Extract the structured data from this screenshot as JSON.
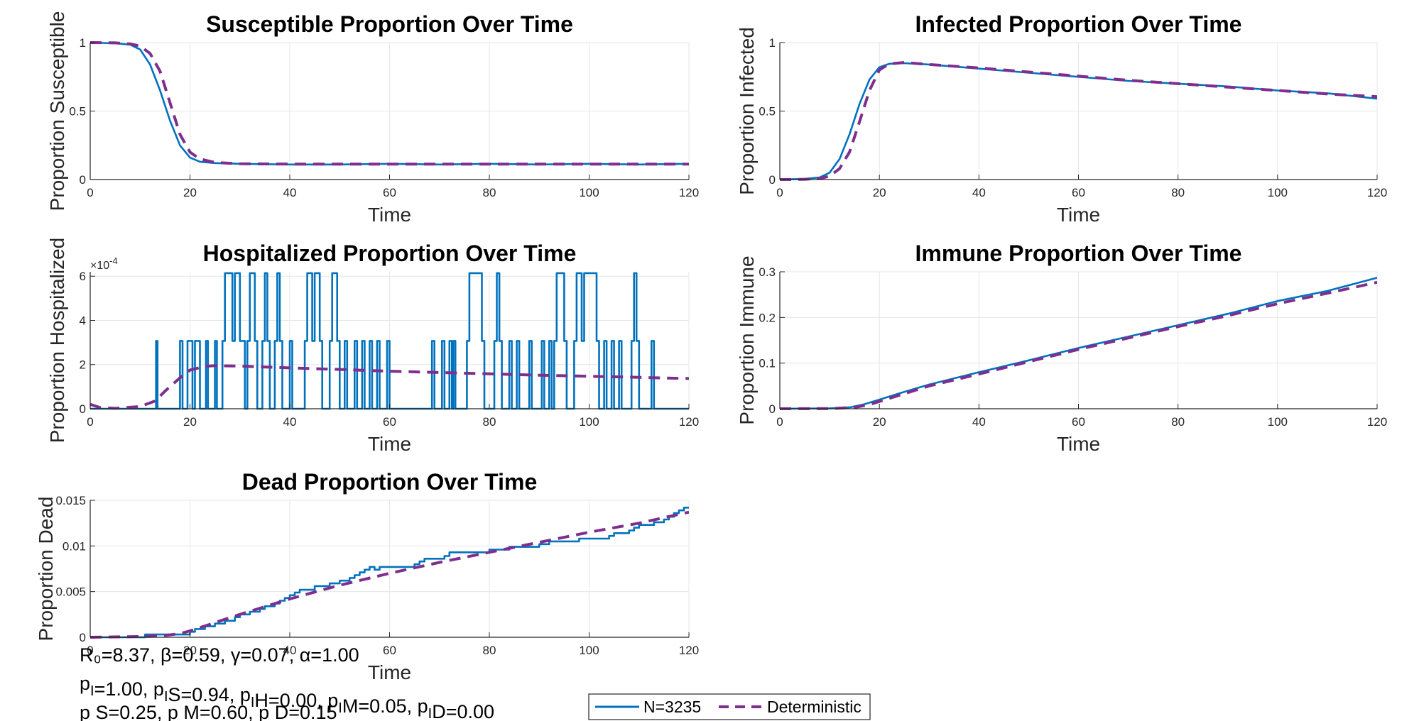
{
  "colors": {
    "stochastic": "#0072BD",
    "deterministic": "#7E2F8E",
    "grid": "#e6e6e6",
    "axis": "#262626"
  },
  "chart_data": [
    {
      "type": "line",
      "title": "Susceptible Proportion Over Time",
      "xlabel": "Time",
      "ylabel": "Proportion Susceptible",
      "xlim": [
        0,
        120
      ],
      "ylim": [
        0,
        1
      ],
      "xticks": [
        0,
        20,
        40,
        60,
        80,
        100,
        120
      ],
      "xtick_labels": [
        "0",
        "20",
        "40",
        "60",
        "80",
        "100",
        "120"
      ],
      "yticks": [
        0,
        0.5,
        1
      ],
      "ytick_labels": [
        "0",
        "0.5",
        "1"
      ],
      "grid": true,
      "series": [
        {
          "name": "N=3235",
          "style": "solid",
          "x": [
            0,
            5,
            8,
            10,
            12,
            14,
            16,
            18,
            20,
            22,
            25,
            30,
            40,
            50,
            60,
            70,
            80,
            90,
            100,
            110,
            120
          ],
          "y": [
            1.0,
            0.995,
            0.985,
            0.95,
            0.84,
            0.65,
            0.43,
            0.25,
            0.16,
            0.13,
            0.12,
            0.115,
            0.11,
            0.11,
            0.115,
            0.11,
            0.115,
            0.11,
            0.115,
            0.11,
            0.115
          ]
        },
        {
          "name": "Deterministic",
          "style": "dashed",
          "x": [
            0,
            5,
            8,
            10,
            12,
            14,
            16,
            18,
            20,
            22,
            25,
            30,
            40,
            60,
            80,
            100,
            120
          ],
          "y": [
            1.0,
            0.998,
            0.99,
            0.975,
            0.92,
            0.79,
            0.56,
            0.33,
            0.2,
            0.15,
            0.125,
            0.115,
            0.113,
            0.113,
            0.113,
            0.113,
            0.113
          ]
        }
      ]
    },
    {
      "type": "line",
      "title": "Infected Proportion Over Time",
      "xlabel": "Time",
      "ylabel": "Proportion Infected",
      "xlim": [
        0,
        120
      ],
      "ylim": [
        0,
        1
      ],
      "xticks": [
        0,
        20,
        40,
        60,
        80,
        100,
        120
      ],
      "xtick_labels": [
        "0",
        "20",
        "40",
        "60",
        "80",
        "100",
        "120"
      ],
      "yticks": [
        0,
        0.5,
        1
      ],
      "ytick_labels": [
        "0",
        "0.5",
        "1"
      ],
      "grid": true,
      "series": [
        {
          "name": "N=3235",
          "style": "solid",
          "x": [
            0,
            5,
            8,
            10,
            12,
            14,
            16,
            18,
            20,
            22,
            25,
            30,
            40,
            50,
            60,
            70,
            80,
            90,
            100,
            110,
            120
          ],
          "y": [
            0.0,
            0.005,
            0.015,
            0.05,
            0.15,
            0.33,
            0.55,
            0.73,
            0.82,
            0.845,
            0.85,
            0.84,
            0.81,
            0.78,
            0.75,
            0.72,
            0.7,
            0.68,
            0.65,
            0.63,
            0.59
          ]
        },
        {
          "name": "Deterministic",
          "style": "dashed",
          "x": [
            0,
            5,
            8,
            10,
            12,
            14,
            16,
            18,
            20,
            22,
            25,
            30,
            40,
            50,
            60,
            70,
            80,
            90,
            100,
            110,
            120
          ],
          "y": [
            0.0,
            0.002,
            0.008,
            0.025,
            0.08,
            0.2,
            0.42,
            0.65,
            0.8,
            0.845,
            0.855,
            0.84,
            0.815,
            0.785,
            0.755,
            0.725,
            0.7,
            0.675,
            0.65,
            0.625,
            0.605
          ]
        }
      ]
    },
    {
      "type": "line",
      "title": "Hospitalized Proportion Over Time",
      "xlabel": "Time",
      "ylabel": "Proportion Hospitalized",
      "exponent": "×10",
      "exponent_power": "-4",
      "xlim": [
        0,
        120
      ],
      "ylim": [
        0,
        6.2
      ],
      "xticks": [
        0,
        20,
        40,
        60,
        80,
        100,
        120
      ],
      "xtick_labels": [
        "0",
        "20",
        "40",
        "60",
        "80",
        "100",
        "120"
      ],
      "yticks": [
        0,
        2,
        4,
        6
      ],
      "ytick_labels": [
        "0",
        "2",
        "4",
        "6"
      ],
      "grid": true,
      "series": [
        {
          "name": "N=3235",
          "style": "solid",
          "type": "step",
          "x": [
            0,
            13.2,
            13.5,
            18,
            18.5,
            19.5,
            20.5,
            21,
            22,
            23.2,
            23.6,
            25,
            25.4,
            26.5,
            27,
            28.5,
            29,
            30,
            31,
            31.5,
            32,
            33,
            33.5,
            34.5,
            35,
            35.5,
            36,
            37,
            37.5,
            38,
            38.5,
            40,
            40.5,
            43,
            43.5,
            44.5,
            45,
            46,
            46.5,
            48,
            48.5,
            49.5,
            50,
            51,
            51.5,
            53,
            53.5,
            54.5,
            55,
            56,
            56.5,
            57.5,
            58,
            59.5,
            60,
            68.5,
            69,
            70.5,
            71,
            72,
            72.5,
            72.8,
            73.2,
            75.5,
            76,
            78.5,
            79,
            81,
            81.5,
            82,
            82.5,
            84,
            84.5,
            85.5,
            86,
            88,
            88.5,
            90.5,
            91,
            92,
            92.5,
            93,
            93.5,
            95,
            95.5,
            97,
            97.5,
            98.5,
            99,
            101.5,
            102,
            103,
            103.5,
            104.5,
            105,
            106,
            106.5,
            108.5,
            109,
            109.5,
            110,
            112.5,
            113,
            120
          ],
          "y": [
            0,
            3.07,
            0,
            3.07,
            0,
            3.07,
            0,
            3.07,
            0,
            3.07,
            0,
            3.07,
            0,
            3.07,
            6.14,
            3.07,
            6.14,
            3.07,
            0,
            3.07,
            6.14,
            3.07,
            0,
            3.07,
            6.14,
            3.07,
            0,
            3.07,
            6.14,
            3.07,
            0,
            3.07,
            0,
            3.07,
            6.14,
            3.07,
            6.14,
            3.07,
            0,
            3.07,
            6.14,
            3.07,
            0,
            3.07,
            0,
            3.07,
            0,
            3.07,
            0,
            3.07,
            0,
            3.07,
            0,
            3.07,
            0,
            3.07,
            0,
            3.07,
            0,
            3.07,
            0,
            3.07,
            0,
            3.07,
            6.14,
            3.07,
            0,
            3.07,
            6.14,
            3.07,
            0,
            3.07,
            0,
            3.07,
            0,
            3.07,
            0,
            3.07,
            0,
            3.07,
            0,
            3.07,
            6.14,
            3.07,
            0,
            3.07,
            6.14,
            3.07,
            6.14,
            3.07,
            0,
            3.07,
            0,
            3.07,
            0,
            3.07,
            0,
            3.07,
            6.14,
            3.07,
            0,
            3.07,
            0,
            0
          ]
        },
        {
          "name": "Deterministic",
          "style": "dashed",
          "x": [
            0,
            2,
            5,
            10,
            13,
            15,
            18,
            20,
            23,
            25,
            30,
            40,
            50,
            60,
            70,
            80,
            90,
            100,
            110,
            120
          ],
          "y": [
            0.2,
            0.05,
            0.02,
            0.1,
            0.35,
            0.8,
            1.4,
            1.75,
            1.92,
            1.95,
            1.93,
            1.85,
            1.78,
            1.7,
            1.64,
            1.58,
            1.52,
            1.47,
            1.42,
            1.37
          ]
        }
      ]
    },
    {
      "type": "line",
      "title": "Immune Proportion Over Time",
      "xlabel": "Time",
      "ylabel": "Proportion Immune",
      "xlim": [
        0,
        120
      ],
      "ylim": [
        0,
        0.3
      ],
      "xticks": [
        0,
        20,
        40,
        60,
        80,
        100,
        120
      ],
      "xtick_labels": [
        "0",
        "20",
        "40",
        "60",
        "80",
        "100",
        "120"
      ],
      "yticks": [
        0,
        0.1,
        0.2,
        0.3
      ],
      "ytick_labels": [
        "0",
        "0.1",
        "0.2",
        "0.3"
      ],
      "grid": true,
      "series": [
        {
          "name": "N=3235",
          "style": "solid",
          "x": [
            0,
            10,
            14,
            17,
            20,
            25,
            30,
            40,
            50,
            60,
            70,
            80,
            90,
            100,
            110,
            120
          ],
          "y": [
            0,
            0.001,
            0.003,
            0.01,
            0.02,
            0.037,
            0.053,
            0.08,
            0.106,
            0.133,
            0.158,
            0.183,
            0.208,
            0.236,
            0.258,
            0.287
          ]
        },
        {
          "name": "Deterministic",
          "style": "dashed",
          "x": [
            0,
            10,
            15,
            18,
            20,
            25,
            30,
            40,
            50,
            60,
            70,
            80,
            90,
            100,
            110,
            120
          ],
          "y": [
            0,
            0.0005,
            0.003,
            0.009,
            0.016,
            0.033,
            0.05,
            0.076,
            0.103,
            0.13,
            0.155,
            0.18,
            0.204,
            0.23,
            0.253,
            0.277
          ]
        }
      ]
    },
    {
      "type": "line",
      "title": "Dead Proportion Over Time",
      "xlabel": "Time",
      "ylabel": "Proportion Dead",
      "xlim": [
        0,
        120
      ],
      "ylim": [
        0,
        0.015
      ],
      "xticks": [
        0,
        20,
        40,
        60,
        80,
        100,
        120
      ],
      "xtick_labels": [
        "0",
        "20",
        "40",
        "60",
        "80",
        "100",
        "120"
      ],
      "yticks": [
        0,
        0.005,
        0.01,
        0.015
      ],
      "ytick_labels": [
        "0",
        "0.005",
        "0.01",
        "0.015"
      ],
      "grid": true,
      "series": [
        {
          "name": "N=3235",
          "style": "solid",
          "type": "step",
          "x": [
            0,
            11,
            20,
            21,
            23,
            25,
            27,
            29,
            30,
            32,
            34,
            35,
            37,
            38,
            39,
            40,
            41,
            42,
            45,
            48,
            50,
            52,
            53,
            54,
            55,
            56,
            57,
            58,
            60,
            62,
            65,
            66,
            67,
            70,
            71,
            72,
            74,
            78,
            80,
            84,
            86,
            88,
            90,
            92,
            95,
            98,
            100,
            103,
            104,
            105,
            107,
            108,
            109,
            110,
            112,
            113,
            114,
            115,
            116,
            117,
            118,
            119,
            120
          ],
          "y": [
            0,
            0.0003,
            0.0006,
            0.0009,
            0.0012,
            0.0015,
            0.0018,
            0.0022,
            0.0025,
            0.0028,
            0.0031,
            0.0034,
            0.0037,
            0.004,
            0.0043,
            0.0046,
            0.0049,
            0.0052,
            0.0056,
            0.0059,
            0.0062,
            0.0065,
            0.0068,
            0.0071,
            0.0074,
            0.0077,
            0.0074,
            0.0077,
            0.0077,
            0.0077,
            0.008,
            0.0083,
            0.0086,
            0.0086,
            0.0089,
            0.0093,
            0.0093,
            0.0093,
            0.0096,
            0.0099,
            0.0099,
            0.0099,
            0.0102,
            0.0105,
            0.0105,
            0.0108,
            0.0108,
            0.0108,
            0.0111,
            0.0114,
            0.0114,
            0.0117,
            0.012,
            0.0123,
            0.0123,
            0.0126,
            0.0126,
            0.0129,
            0.0132,
            0.0136,
            0.0139,
            0.0142,
            0.0142
          ]
        },
        {
          "name": "Deterministic",
          "style": "dashed",
          "x": [
            0,
            12,
            15,
            18,
            20,
            25,
            30,
            40,
            50,
            60,
            70,
            80,
            90,
            100,
            110,
            120
          ],
          "y": [
            0,
            0.0001,
            0.0002,
            0.0004,
            0.0007,
            0.0016,
            0.0025,
            0.0042,
            0.0057,
            0.007,
            0.0082,
            0.0093,
            0.0104,
            0.0115,
            0.0125,
            0.0137
          ]
        }
      ]
    }
  ],
  "legend": {
    "entries": [
      "N=3235",
      "Deterministic"
    ],
    "placement": "bottom-center"
  },
  "params": {
    "line1": "R₀=8.37, β=0.59, γ=0.07, α=1.00",
    "line2": [
      {
        "t": "p",
        "s": ""
      },
      {
        "t": "",
        "s": "I"
      },
      {
        "t": "=1.00, p",
        "s": ""
      },
      {
        "t": "",
        "s": "I"
      },
      {
        "t": "S=0.94, p",
        "s": ""
      },
      {
        "t": "",
        "s": "I"
      },
      {
        "t": "H=0.00, p",
        "s": ""
      },
      {
        "t": "",
        "s": "I"
      },
      {
        "t": "M=0.05, p",
        "s": ""
      },
      {
        "t": "",
        "s": "I"
      },
      {
        "t": "D=0.00",
        "s": ""
      }
    ],
    "line3": "p  S=0.25, p  M=0.60, p  D=0.15"
  }
}
